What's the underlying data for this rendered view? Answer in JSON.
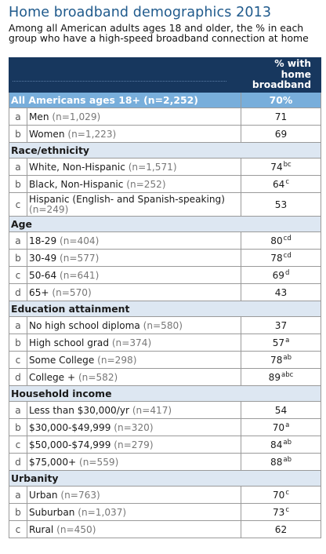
{
  "chart_data": {
    "type": "table",
    "title": "Home broadband demographics 2013",
    "subtitle": "Among all American adults ages 18 and older, the % in each group who have a high-speed broadband connection at home",
    "column_header": "% with home broadband",
    "total": {
      "label": "All Americans ages 18+ (n=2,252)",
      "value": "70%"
    },
    "groups": [
      {
        "name": "",
        "rows": [
          {
            "letter": "a",
            "label": "Men",
            "n": "(n=1,029)",
            "value": "71",
            "sig": ""
          },
          {
            "letter": "b",
            "label": "Women",
            "n": "(n=1,223)",
            "value": "69",
            "sig": ""
          }
        ]
      },
      {
        "name": "Race/ethnicity",
        "rows": [
          {
            "letter": "a",
            "label": "White, Non-Hispanic",
            "n": "(n=1,571)",
            "value": "74",
            "sig": "bc"
          },
          {
            "letter": "b",
            "label": "Black, Non-Hispanic",
            "n": "(n=252)",
            "value": "64",
            "sig": "c"
          },
          {
            "letter": "c",
            "label": "Hispanic (English- and Spanish-speaking)",
            "n": "(n=249)",
            "value": "53",
            "sig": ""
          }
        ]
      },
      {
        "name": "Age",
        "rows": [
          {
            "letter": "a",
            "label": "18-29",
            "n": "(n=404)",
            "value": "80",
            "sig": "cd"
          },
          {
            "letter": "b",
            "label": "30-49",
            "n": "(n=577)",
            "value": "78",
            "sig": "cd"
          },
          {
            "letter": "c",
            "label": "50-64",
            "n": "(n=641)",
            "value": "69",
            "sig": "d"
          },
          {
            "letter": "d",
            "label": "65+",
            "n": "(n=570)",
            "value": "43",
            "sig": ""
          }
        ]
      },
      {
        "name": "Education attainment",
        "rows": [
          {
            "letter": "a",
            "label": "No high school diploma",
            "n": "(n=580)",
            "value": "37",
            "sig": ""
          },
          {
            "letter": "b",
            "label": "High school grad",
            "n": "(n=374)",
            "value": "57",
            "sig": "a"
          },
          {
            "letter": "c",
            "label": "Some College",
            "n": "(n=298)",
            "value": "78",
            "sig": "ab"
          },
          {
            "letter": "d",
            "label": "College +",
            "n": "(n=582)",
            "value": "89",
            "sig": "abc"
          }
        ]
      },
      {
        "name": "Household income",
        "rows": [
          {
            "letter": "a",
            "label": "Less than $30,000/yr",
            "n": "(n=417)",
            "value": "54",
            "sig": ""
          },
          {
            "letter": "b",
            "label": "$30,000-$49,999",
            "n": "(n=320)",
            "value": "70",
            "sig": "a"
          },
          {
            "letter": "c",
            "label": "$50,000-$74,999",
            "n": "(n=279)",
            "value": "84",
            "sig": "ab"
          },
          {
            "letter": "d",
            "label": "$75,000+",
            "n": "(n=559)",
            "value": "88",
            "sig": "ab"
          }
        ]
      },
      {
        "name": "Urbanity",
        "rows": [
          {
            "letter": "a",
            "label": "Urban",
            "n": "(n=763)",
            "value": "70",
            "sig": "c"
          },
          {
            "letter": "b",
            "label": "Suburban",
            "n": "(n=1,037)",
            "value": "73",
            "sig": "c"
          },
          {
            "letter": "c",
            "label": "Rural",
            "n": "(n=450)",
            "value": "62",
            "sig": ""
          }
        ]
      }
    ]
  },
  "colors": {
    "title": "#1f5a8c",
    "header_bg": "#17375e",
    "total_bg": "#78aedb",
    "section_bg": "#dde7f2"
  }
}
